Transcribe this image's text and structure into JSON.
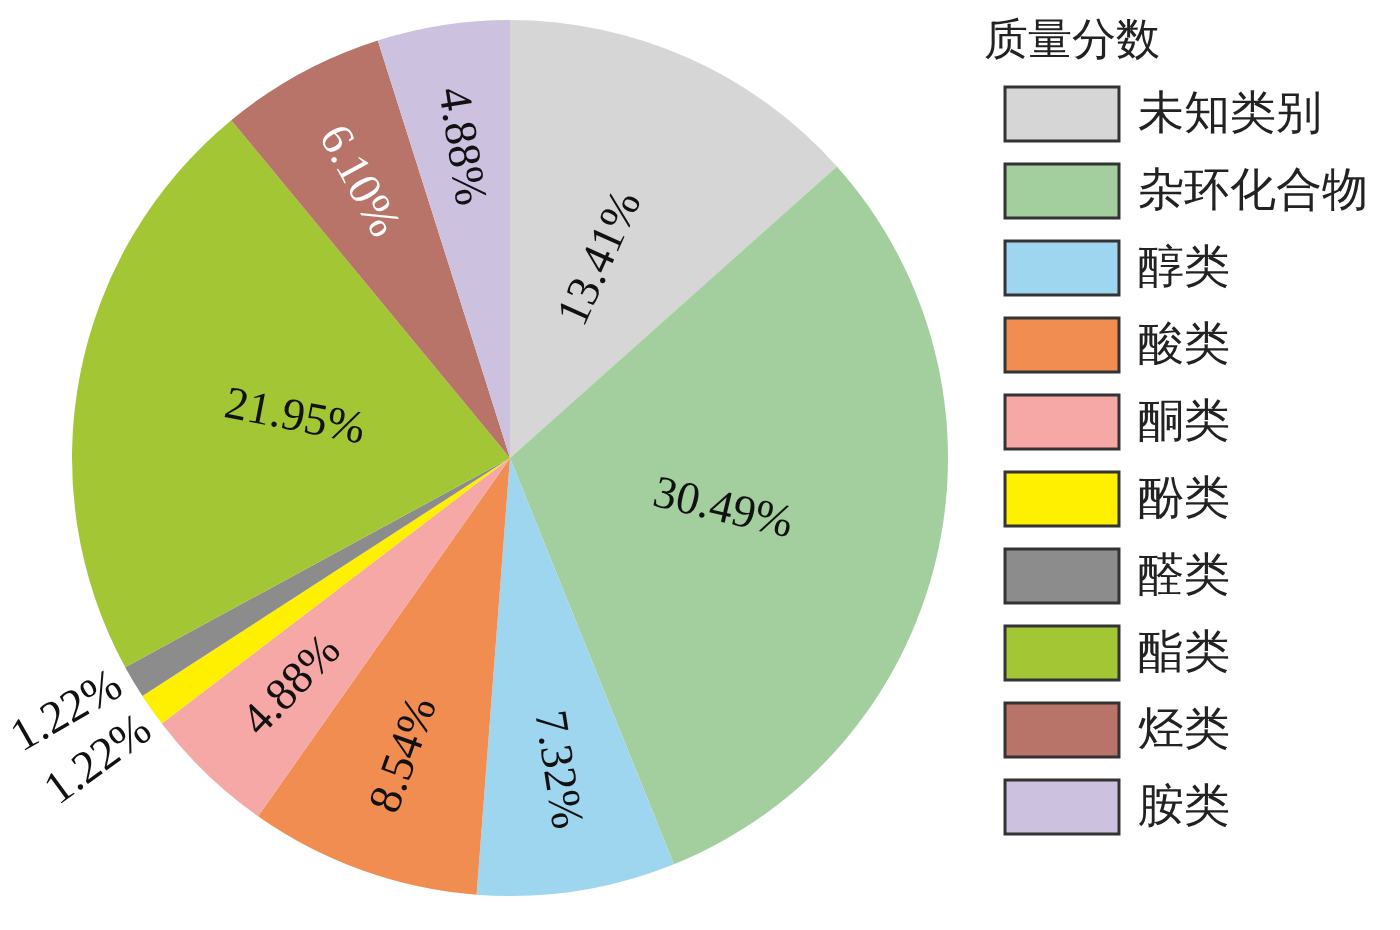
{
  "chart_data": {
    "type": "pie",
    "legend_title": "质量分数",
    "categories": [
      "未知类别",
      "杂环化合物",
      "醇类",
      "酸类",
      "酮类",
      "酚类",
      "醛类",
      "酯类",
      "烃类",
      "胺类"
    ],
    "values": [
      13.41,
      30.49,
      7.32,
      8.54,
      4.88,
      1.22,
      1.22,
      21.95,
      6.1,
      4.88
    ],
    "value_labels": [
      "13.41%",
      "30.49%",
      "7.32%",
      "8.54%",
      "4.88%",
      "1.22%",
      "1.22%",
      "21.95%",
      "6.10%",
      "4.88%"
    ],
    "colors": [
      "#d6d6d6",
      "#a3cf9f",
      "#9ed5ef",
      "#f18d50",
      "#f6a8a6",
      "#fff000",
      "#8c8c8c",
      "#a3c634",
      "#b87468",
      "#cdc1e0"
    ],
    "legend": "right"
  }
}
